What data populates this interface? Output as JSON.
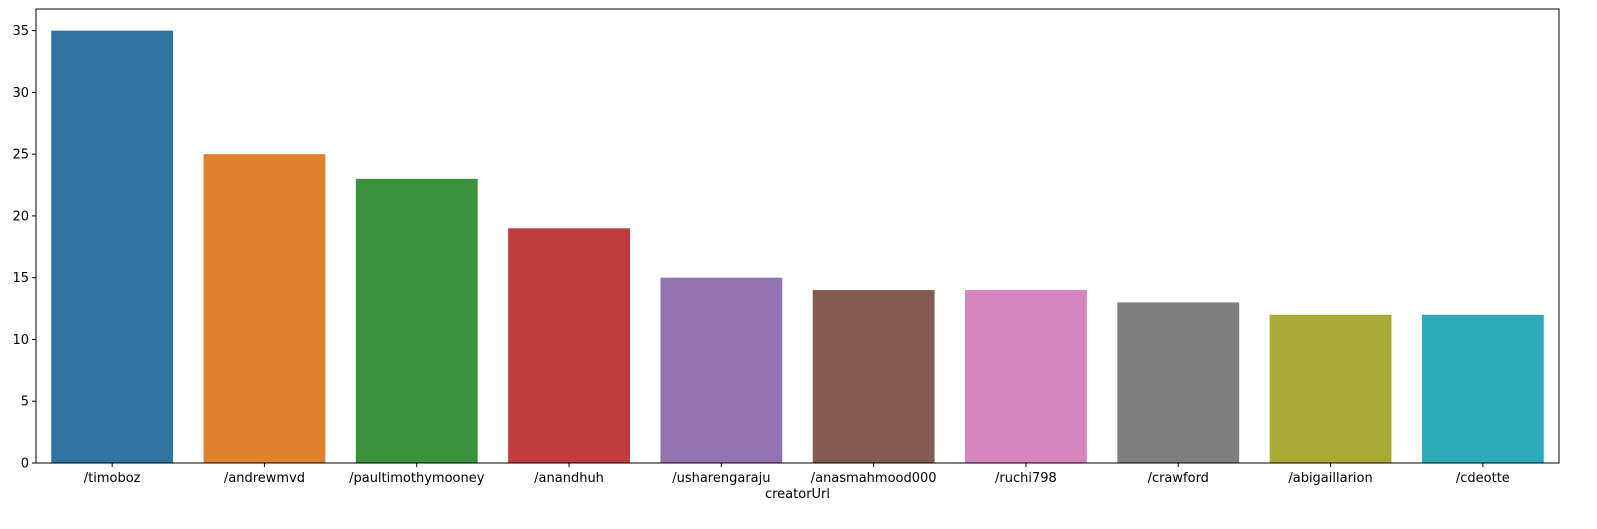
{
  "chart_data": {
    "type": "bar",
    "title": "",
    "xlabel": "creatorUrl",
    "ylabel": "",
    "categories": [
      "/timoboz",
      "/andrewmvd",
      "/paultimothymooney",
      "/anandhuh",
      "/usharengaraju",
      "/anasmahmood000",
      "/ruchi798",
      "/crawford",
      "/abigaillarion",
      "/cdeotte"
    ],
    "values": [
      35,
      25,
      23,
      19,
      15,
      14,
      14,
      13,
      12,
      12
    ],
    "colors": [
      "#3274a1",
      "#e1812c",
      "#3a923a",
      "#c03d3e",
      "#9372b2",
      "#845b53",
      "#d684bd",
      "#7f7f7f",
      "#a9aa35",
      "#2eabb8"
    ],
    "ylim": [
      0,
      36.75
    ],
    "yticks": [
      0,
      5,
      10,
      15,
      20,
      25,
      30,
      35
    ],
    "grid": false,
    "legend": "none"
  }
}
